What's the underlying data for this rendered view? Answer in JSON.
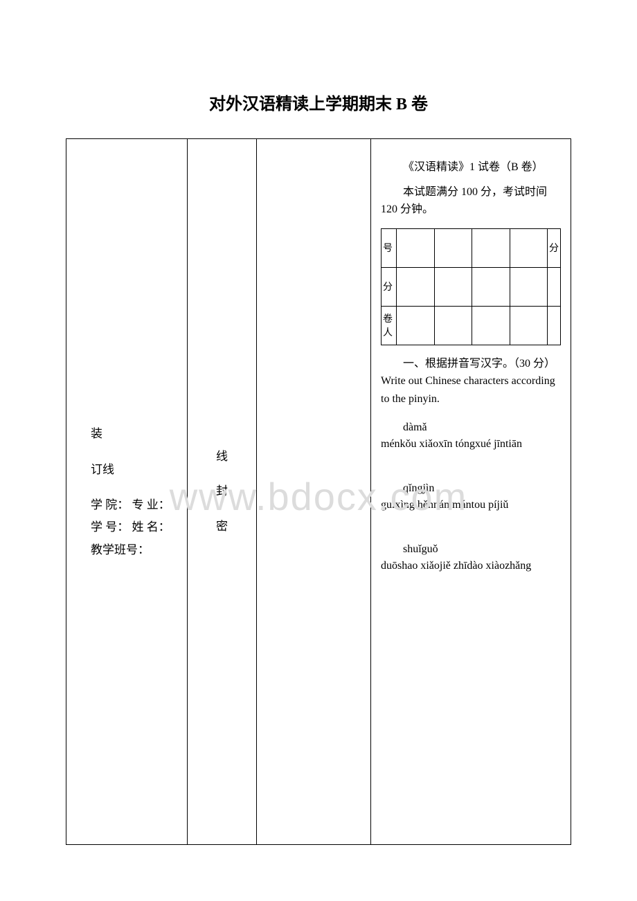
{
  "page": {
    "title": "对外汉语精读上学期期末 B 卷",
    "watermark": "www.bdocx.com",
    "background_color": "#ffffff",
    "text_color": "#000000",
    "watermark_color": "#dcdcdc"
  },
  "col1": {
    "zhuang": "装",
    "dingxian": "订线",
    "info": "学 院：   专 业：   学 号：     姓 名：   教学班号："
  },
  "col2": {
    "xian": "线",
    "feng": "封",
    "mi": "密"
  },
  "col4": {
    "exam_title": "《汉语精读》1 试卷（B 卷）",
    "exam_meta": "本试题满分 100 分，考试时间 120 分钟。",
    "score_table": {
      "rows": [
        {
          "left": "号",
          "right": "分"
        },
        {
          "left": "分",
          "right": ""
        },
        {
          "left": "卷人",
          "right": ""
        }
      ],
      "middle_cols": 4
    },
    "section1_label": "一、根据拼音写汉字。（30 分）Write out Chinese characters according to the pinyin.",
    "pinyin_groups": [
      {
        "first": "dàmǎ",
        "rest": "ménkǒu xiǎoxīn tóngxué jīntiān"
      },
      {
        "first": "qǐngjìn",
        "rest": "guìxìng hěnnán mántou píjiǔ"
      },
      {
        "first": "shuǐguǒ",
        "rest": "duōshao xiǎojiě zhīdào xiàozhǎng"
      }
    ]
  }
}
